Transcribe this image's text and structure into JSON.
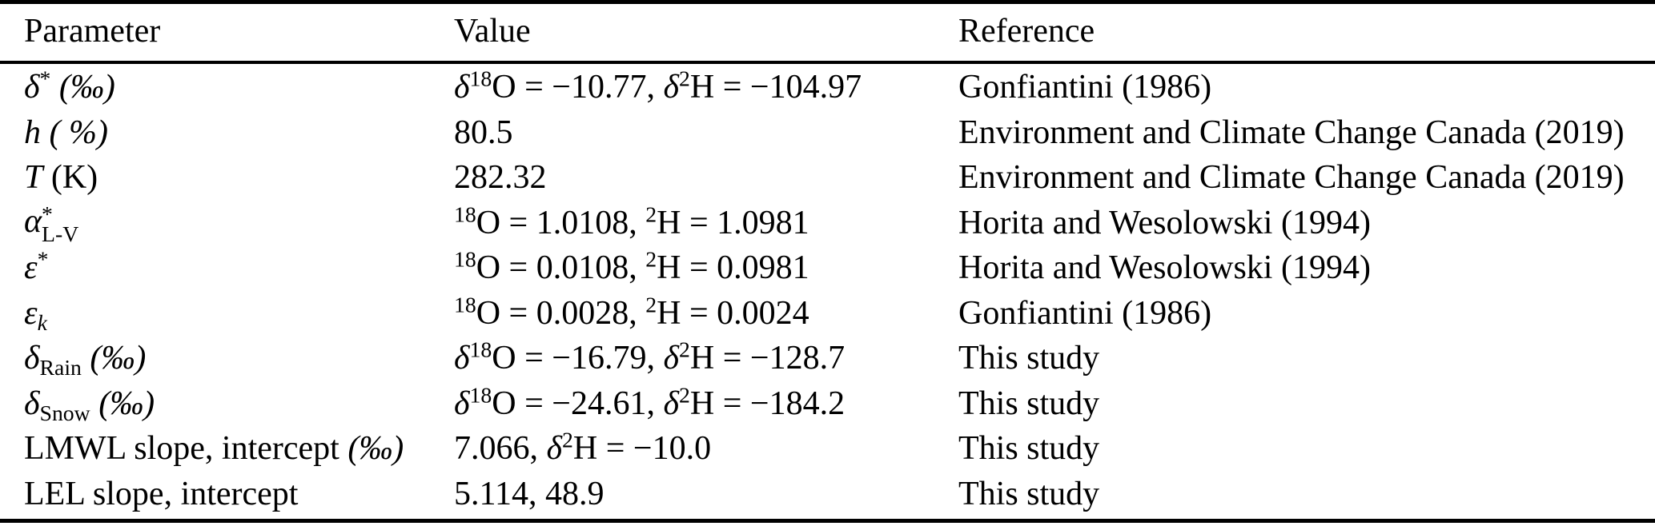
{
  "colors": {
    "background": "#ffffff",
    "text": "#000000",
    "rule": "#000000"
  },
  "table": {
    "columns": [
      "Parameter",
      "Value",
      "Reference"
    ],
    "rows": [
      {
        "parameter": [
          {
            "t": "δ",
            "s": "i"
          },
          {
            "t": "*",
            "s": "sup"
          },
          {
            "t": " (‰)",
            "s": "i"
          }
        ],
        "value": [
          {
            "t": "δ",
            "s": "i"
          },
          {
            "t": "18",
            "s": "sup"
          },
          {
            "t": "O = −10.77, ",
            "s": "r"
          },
          {
            "t": "δ",
            "s": "i"
          },
          {
            "t": "2",
            "s": "sup"
          },
          {
            "t": "H = −104.97",
            "s": "r"
          }
        ],
        "reference": "Gonfiantini (1986)"
      },
      {
        "parameter": [
          {
            "t": "h",
            "s": "i"
          },
          {
            "t": " ( %)",
            "s": "i"
          }
        ],
        "value": [
          {
            "t": "80.5",
            "s": "r"
          }
        ],
        "reference": "Environment and Climate Change Canada (2019)"
      },
      {
        "parameter": [
          {
            "t": "T",
            "s": "i"
          },
          {
            "t": " (K)",
            "s": "r"
          }
        ],
        "value": [
          {
            "t": "282.32",
            "s": "r"
          }
        ],
        "reference": "Environment and Climate Change Canada (2019)"
      },
      {
        "parameter": [
          {
            "t": "α",
            "s": "i"
          },
          {
            "s": "stack",
            "sup": "*",
            "sub": "L-V"
          }
        ],
        "value": [
          {
            "t": "18",
            "s": "sup"
          },
          {
            "t": "O = 1.0108, ",
            "s": "r"
          },
          {
            "t": "2",
            "s": "sup"
          },
          {
            "t": "H = 1.0981",
            "s": "r"
          }
        ],
        "reference": "Horita and Wesolowski (1994)"
      },
      {
        "parameter": [
          {
            "t": "ε",
            "s": "i"
          },
          {
            "t": "*",
            "s": "sup"
          }
        ],
        "value": [
          {
            "t": "18",
            "s": "sup"
          },
          {
            "t": "O = 0.0108, ",
            "s": "r"
          },
          {
            "t": "2",
            "s": "sup"
          },
          {
            "t": "H = 0.0981",
            "s": "r"
          }
        ],
        "reference": "Horita and Wesolowski (1994)"
      },
      {
        "parameter": [
          {
            "t": "ε",
            "s": "i"
          },
          {
            "t": "k",
            "s": "subi"
          }
        ],
        "value": [
          {
            "t": "18",
            "s": "sup"
          },
          {
            "t": "O = 0.0028, ",
            "s": "r"
          },
          {
            "t": "2",
            "s": "sup"
          },
          {
            "t": "H = 0.0024",
            "s": "r"
          }
        ],
        "reference": "Gonfiantini (1986)"
      },
      {
        "parameter": [
          {
            "t": "δ",
            "s": "i"
          },
          {
            "t": "Rain",
            "s": "sub"
          },
          {
            "t": " (‰)",
            "s": "i"
          }
        ],
        "value": [
          {
            "t": "δ",
            "s": "i"
          },
          {
            "t": "18",
            "s": "sup"
          },
          {
            "t": "O = −16.79, ",
            "s": "r"
          },
          {
            "t": "δ",
            "s": "i"
          },
          {
            "t": "2",
            "s": "sup"
          },
          {
            "t": "H = −128.7",
            "s": "r"
          }
        ],
        "reference": "This study"
      },
      {
        "parameter": [
          {
            "t": "δ",
            "s": "i"
          },
          {
            "t": "Snow",
            "s": "sub"
          },
          {
            "t": " (‰)",
            "s": "i"
          }
        ],
        "value": [
          {
            "t": "δ",
            "s": "i"
          },
          {
            "t": "18",
            "s": "sup"
          },
          {
            "t": "O = −24.61, ",
            "s": "r"
          },
          {
            "t": "δ",
            "s": "i"
          },
          {
            "t": "2",
            "s": "sup"
          },
          {
            "t": "H = −184.2",
            "s": "r"
          }
        ],
        "reference": "This study"
      },
      {
        "parameter": [
          {
            "t": "LMWL slope, intercept ",
            "s": "r"
          },
          {
            "t": "(‰)",
            "s": "i"
          }
        ],
        "value": [
          {
            "t": "7.066, ",
            "s": "r"
          },
          {
            "t": "δ",
            "s": "i"
          },
          {
            "t": "2",
            "s": "sup"
          },
          {
            "t": "H = −10.0",
            "s": "r"
          }
        ],
        "reference": "This study"
      },
      {
        "parameter": [
          {
            "t": "LEL slope, intercept",
            "s": "r"
          }
        ],
        "value": [
          {
            "t": "5.114, 48.9",
            "s": "r"
          }
        ],
        "reference": "This study"
      }
    ]
  }
}
